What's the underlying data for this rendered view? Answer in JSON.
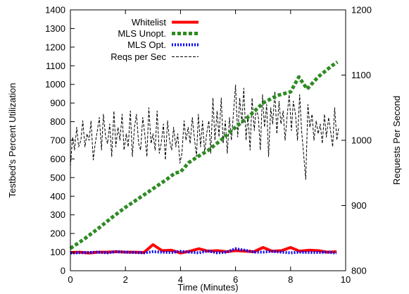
{
  "chart_data": {
    "type": "line",
    "title": "",
    "xlabel": "Time (Minutes)",
    "ylabel_left": "Testbed's Percent Utilization",
    "ylabel_right": "Requests Per Second",
    "xlim": [
      0,
      10
    ],
    "ylim_left": [
      0,
      1400
    ],
    "ylim_right": [
      800,
      1200
    ],
    "x_ticks": [
      0,
      2,
      4,
      6,
      8,
      10
    ],
    "y_left_ticks": [
      0,
      100,
      200,
      300,
      400,
      500,
      600,
      700,
      800,
      900,
      1000,
      1100,
      1200,
      1300,
      1400
    ],
    "y_right_ticks": [
      800,
      900,
      1000,
      1100,
      1200
    ],
    "grid": false,
    "legend_position": "top-left",
    "series": [
      {
        "name": "Whitelist",
        "axis": "left",
        "color": "#ff0000",
        "style": "solid",
        "x": [
          0,
          0.33,
          0.67,
          1.0,
          1.33,
          1.67,
          2.0,
          2.33,
          2.67,
          3.0,
          3.33,
          3.67,
          4.0,
          4.33,
          4.67,
          5.0,
          5.33,
          5.67,
          6.0,
          6.33,
          6.67,
          7.0,
          7.33,
          7.67,
          8.0,
          8.33,
          8.67,
          9.0,
          9.33,
          9.67
        ],
        "y": [
          98,
          100,
          95,
          100,
          100,
          102,
          100,
          100,
          98,
          140,
          108,
          110,
          95,
          105,
          118,
          105,
          108,
          102,
          108,
          105,
          102,
          125,
          105,
          108,
          125,
          105,
          110,
          108,
          100,
          102
        ]
      },
      {
        "name": "MLS Unopt.",
        "axis": "left",
        "color": "#2e8b22",
        "style": "dotted-thick",
        "x": [
          0,
          0.5,
          1.0,
          1.5,
          2.0,
          2.5,
          3.0,
          3.5,
          3.8,
          4.0,
          4.3,
          4.6,
          5.0,
          5.5,
          6.0,
          6.5,
          7.0,
          7.5,
          8.0,
          8.3,
          8.6,
          9.0,
          9.5,
          9.7
        ],
        "y": [
          120,
          170,
          225,
          285,
          340,
          390,
          440,
          490,
          525,
          530,
          580,
          610,
          645,
          705,
          770,
          830,
          900,
          940,
          960,
          1040,
          975,
          1040,
          1100,
          1120
        ]
      },
      {
        "name": "MLS Opt.",
        "axis": "left",
        "color": "#0000ff",
        "style": "dotted",
        "x": [
          0,
          0.33,
          0.67,
          1.0,
          1.33,
          1.67,
          2.0,
          2.33,
          2.67,
          3.0,
          3.33,
          3.67,
          4.0,
          4.33,
          4.67,
          5.0,
          5.33,
          5.67,
          6.0,
          6.33,
          6.67,
          7.0,
          7.33,
          7.67,
          8.0,
          8.33,
          8.67,
          9.0,
          9.33,
          9.67
        ],
        "y": [
          95,
          97,
          98,
          100,
          96,
          102,
          100,
          98,
          96,
          102,
          100,
          98,
          104,
          100,
          96,
          106,
          96,
          100,
          118,
          110,
          100,
          100,
          104,
          100,
          96,
          100,
          98,
          98,
          100,
          95
        ]
      },
      {
        "name": "Reqs per Sec",
        "axis": "right",
        "color": "#000000",
        "style": "dashed",
        "x": [
          0,
          0.08,
          0.15,
          0.23,
          0.3,
          0.38,
          0.45,
          0.53,
          0.6,
          0.68,
          0.75,
          0.83,
          0.9,
          0.98,
          1.05,
          1.13,
          1.2,
          1.28,
          1.35,
          1.43,
          1.5,
          1.58,
          1.65,
          1.73,
          1.8,
          1.88,
          1.95,
          2.03,
          2.1,
          2.18,
          2.25,
          2.33,
          2.4,
          2.48,
          2.55,
          2.63,
          2.7,
          2.78,
          2.85,
          2.93,
          3.0,
          3.08,
          3.15,
          3.23,
          3.3,
          3.38,
          3.45,
          3.53,
          3.6,
          3.68,
          3.75,
          3.83,
          3.9,
          3.98,
          4.05,
          4.13,
          4.2,
          4.28,
          4.35,
          4.43,
          4.5,
          4.58,
          4.65,
          4.73,
          4.8,
          4.88,
          4.95,
          5.03,
          5.1,
          5.18,
          5.25,
          5.33,
          5.4,
          5.48,
          5.55,
          5.63,
          5.7,
          5.78,
          5.85,
          5.93,
          6.0,
          6.08,
          6.15,
          6.23,
          6.3,
          6.38,
          6.45,
          6.53,
          6.6,
          6.68,
          6.75,
          6.83,
          6.9,
          6.98,
          7.05,
          7.13,
          7.2,
          7.28,
          7.35,
          7.43,
          7.5,
          7.58,
          7.65,
          7.73,
          7.8,
          7.88,
          7.95,
          8.03,
          8.1,
          8.18,
          8.25,
          8.33,
          8.4,
          8.48,
          8.55,
          8.63,
          8.7,
          8.78,
          8.85,
          8.93,
          9.0,
          9.08,
          9.15,
          9.23,
          9.3,
          9.38,
          9.45,
          9.53,
          9.6,
          9.68,
          9.75
        ],
        "y": [
          960,
          1005,
          985,
          1020,
          990,
          1000,
          1030,
          990,
          1010,
          1000,
          1030,
          970,
          995,
          1015,
          1035,
          985,
          1040,
          1005,
          995,
          1025,
          975,
          1045,
          990,
          1020,
          1000,
          1040,
          985,
          1010,
          990,
          1045,
          975,
          1020,
          1040,
          995,
          985,
          1035,
          1010,
          975,
          1050,
          995,
          1010,
          985,
          1045,
          980,
          995,
          1025,
          970,
          1030,
          1000,
          985,
          1020,
          990,
          1010,
          965,
          980,
          1030,
          1000,
          1020,
          995,
          1035,
          1005,
          975,
          1040,
          990,
          1030,
          980,
          1010,
          1030,
          980,
          1065,
          1000,
          1045,
          1005,
          1065,
          995,
          1030,
          980,
          1035,
          1000,
          1045,
          1085,
          1005,
          1065,
          1025,
          1080,
          1000,
          1040,
          985,
          1065,
          1015,
          1050,
          1035,
          985,
          1070,
          1020,
          1055,
          975,
          1050,
          1025,
          1075,
          1010,
          1060,
          1025,
          1045,
          1000,
          1040,
          1070,
          1015,
          1060,
          1040,
          1000,
          1070,
          1015,
          975,
          940,
          1055,
          1020,
          1040,
          1000,
          1030,
          1010,
          1025,
          995,
          1040,
          1005,
          1035,
          1015,
          990,
          1050,
          1000,
          1020
        ]
      }
    ]
  }
}
